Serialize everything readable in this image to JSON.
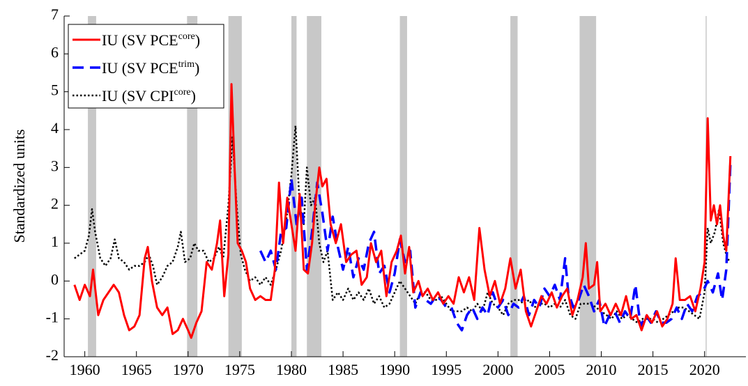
{
  "chart_data": {
    "type": "line",
    "y_label": "Standardized units",
    "xlim": [
      1958,
      2024
    ],
    "ylim": [
      -2,
      7
    ],
    "xticks": [
      1960,
      1965,
      1970,
      1975,
      1980,
      1985,
      1990,
      1995,
      2000,
      2005,
      2010,
      2015,
      2020
    ],
    "yticks": [
      -2,
      -1,
      0,
      1,
      2,
      3,
      4,
      5,
      6,
      7
    ],
    "legend": "upper left",
    "recession_color": "#c8c8c8",
    "recessions": [
      [
        1960.3,
        1961.1
      ],
      [
        1969.9,
        1970.9
      ],
      [
        1973.9,
        1975.2
      ],
      [
        1980.0,
        1980.5
      ],
      [
        1981.5,
        1982.9
      ],
      [
        1990.5,
        1991.2
      ],
      [
        2001.2,
        2001.9
      ],
      [
        2007.9,
        2009.5
      ],
      [
        2020.1,
        2020.2
      ]
    ],
    "series": [
      {
        "name": "IU (SV PCE",
        "name_superscript": "core",
        "name_suffix": ")",
        "color": "#ff0000",
        "style": "solid",
        "x": [
          1959.0,
          1959.5,
          1960.0,
          1960.5,
          1960.8,
          1961.3,
          1961.8,
          1962.3,
          1962.8,
          1963.3,
          1963.8,
          1964.3,
          1964.8,
          1965.3,
          1965.8,
          1966.1,
          1966.5,
          1967.0,
          1967.5,
          1968.0,
          1968.5,
          1969.0,
          1969.5,
          1970.0,
          1970.3,
          1970.8,
          1971.3,
          1971.8,
          1972.3,
          1972.8,
          1973.1,
          1973.5,
          1973.9,
          1974.2,
          1974.5,
          1974.8,
          1975.2,
          1975.6,
          1976.0,
          1976.5,
          1977.0,
          1977.5,
          1978.0,
          1978.4,
          1978.8,
          1979.2,
          1979.6,
          1980.0,
          1980.4,
          1980.8,
          1981.2,
          1981.6,
          1982.0,
          1982.3,
          1982.7,
          1983.0,
          1983.4,
          1983.8,
          1984.3,
          1984.8,
          1985.3,
          1985.8,
          1986.3,
          1986.8,
          1987.3,
          1987.7,
          1988.2,
          1988.7,
          1989.2,
          1989.7,
          1990.2,
          1990.6,
          1991.0,
          1991.4,
          1991.8,
          1992.3,
          1992.7,
          1993.2,
          1993.7,
          1994.2,
          1994.7,
          1995.2,
          1995.7,
          1996.2,
          1996.7,
          1997.2,
          1997.7,
          1998.2,
          1998.7,
          1999.2,
          1999.7,
          2000.2,
          2000.7,
          2001.2,
          2001.7,
          2002.2,
          2002.7,
          2003.2,
          2003.7,
          2004.2,
          2004.7,
          2005.2,
          2005.7,
          2006.2,
          2006.7,
          2007.2,
          2007.7,
          2008.2,
          2008.5,
          2008.8,
          2009.3,
          2009.6,
          2009.9,
          2010.4,
          2010.9,
          2011.4,
          2011.9,
          2012.4,
          2012.9,
          2013.4,
          2013.9,
          2014.4,
          2014.9,
          2015.4,
          2015.9,
          2016.4,
          2016.9,
          2017.2,
          2017.6,
          2018.1,
          2018.6,
          2019.1,
          2019.6,
          2020.0,
          2020.3,
          2020.6,
          2020.9,
          2021.2,
          2021.5,
          2021.8,
          2022.1,
          2022.5
        ],
        "values": [
          -0.1,
          -0.5,
          -0.1,
          -0.4,
          0.3,
          -0.9,
          -0.5,
          -0.3,
          -0.1,
          -0.3,
          -0.9,
          -1.3,
          -1.2,
          -0.9,
          0.6,
          0.9,
          0.0,
          -0.7,
          -0.9,
          -0.7,
          -1.4,
          -1.3,
          -1.0,
          -1.3,
          -1.5,
          -1.1,
          -0.8,
          0.5,
          0.3,
          1.0,
          1.6,
          -0.4,
          0.7,
          5.2,
          3.0,
          1.0,
          0.8,
          0.5,
          -0.2,
          -0.5,
          -0.4,
          -0.5,
          -0.5,
          0.3,
          2.6,
          1.0,
          2.2,
          1.5,
          0.8,
          2.3,
          0.3,
          0.2,
          1.0,
          2.0,
          3.0,
          2.5,
          2.7,
          1.5,
          1.0,
          1.5,
          0.5,
          0.7,
          0.8,
          -0.1,
          0.1,
          1.0,
          0.5,
          0.8,
          -0.4,
          0.5,
          0.8,
          1.2,
          0.2,
          0.9,
          -0.3,
          0.0,
          -0.4,
          -0.2,
          -0.5,
          -0.3,
          -0.6,
          -0.4,
          -0.6,
          0.1,
          -0.3,
          0.1,
          -0.5,
          1.4,
          0.3,
          -0.4,
          0.0,
          -0.6,
          -0.2,
          0.6,
          -0.2,
          0.3,
          -0.8,
          -1.2,
          -0.8,
          -0.4,
          -0.6,
          -0.3,
          -0.7,
          -0.4,
          -0.2,
          -0.9,
          -0.5,
          0.1,
          1.0,
          -0.2,
          -0.1,
          0.5,
          -0.8,
          -0.6,
          -0.9,
          -0.6,
          -0.9,
          -0.4,
          -1.0,
          -0.9,
          -1.3,
          -0.9,
          -1.1,
          -0.8,
          -1.2,
          -1.0,
          -0.6,
          0.6,
          -0.5,
          -0.5,
          -0.4,
          -0.8,
          -0.2,
          0.5,
          4.3,
          1.6,
          2.0,
          1.5,
          2.0,
          1.2,
          0.8,
          3.3
        ]
      },
      {
        "name": "IU (SV PCE",
        "name_superscript": "trim",
        "name_suffix": ")",
        "color": "#0000ff",
        "style": "dashed",
        "x": [
          1977.0,
          1977.5,
          1978.0,
          1978.5,
          1979.0,
          1979.5,
          1980.0,
          1980.5,
          1981.0,
          1981.5,
          1982.0,
          1982.5,
          1983.0,
          1983.5,
          1984.0,
          1984.5,
          1985.0,
          1985.5,
          1986.0,
          1986.5,
          1987.0,
          1987.5,
          1988.0,
          1988.5,
          1989.0,
          1989.5,
          1990.0,
          1990.5,
          1991.0,
          1991.5,
          1992.0,
          1992.5,
          1993.0,
          1993.5,
          1994.0,
          1994.5,
          1995.0,
          1995.5,
          1996.0,
          1996.5,
          1997.0,
          1997.5,
          1998.0,
          1998.5,
          1999.0,
          1999.5,
          2000.0,
          2000.5,
          2001.0,
          2001.5,
          2002.0,
          2002.5,
          2003.0,
          2003.5,
          2004.0,
          2004.5,
          2005.0,
          2005.5,
          2006.0,
          2006.5,
          2006.8,
          2007.3,
          2007.8,
          2008.3,
          2008.8,
          2009.3,
          2009.8,
          2010.3,
          2010.8,
          2011.3,
          2011.8,
          2012.3,
          2012.8,
          2013.3,
          2013.8,
          2014.3,
          2014.8,
          2015.3,
          2015.8,
          2016.3,
          2016.8,
          2017.3,
          2017.8,
          2018.3,
          2018.8,
          2019.3,
          2019.8,
          2020.3,
          2020.8,
          2021.3,
          2021.7,
          2022.1,
          2022.5
        ],
        "values": [
          0.8,
          0.5,
          0.8,
          0.3,
          1.3,
          1.4,
          2.7,
          1.5,
          2.2,
          0.3,
          1.3,
          2.6,
          1.8,
          0.8,
          1.7,
          0.9,
          0.3,
          0.9,
          0.1,
          0.6,
          0.3,
          1.0,
          1.3,
          0.2,
          0.4,
          -0.3,
          0.2,
          1.1,
          0.5,
          0.8,
          -0.7,
          -0.3,
          -0.5,
          -0.6,
          -0.4,
          -0.5,
          -0.7,
          -0.7,
          -1.1,
          -1.3,
          -0.9,
          -0.7,
          -1.0,
          -0.7,
          -0.9,
          -0.3,
          -0.7,
          -0.5,
          -0.9,
          -0.6,
          -0.7,
          -0.4,
          -0.9,
          -0.5,
          -0.7,
          -0.2,
          -0.4,
          -0.1,
          -0.5,
          0.6,
          -0.3,
          -0.7,
          -0.5,
          -0.1,
          -0.4,
          -0.8,
          -0.5,
          -1.2,
          -0.9,
          -0.8,
          -1.1,
          -0.8,
          -1.0,
          -0.1,
          -1.2,
          -0.9,
          -1.1,
          -0.8,
          -1.1,
          -1.1,
          -1.0,
          -0.7,
          -1.0,
          -0.6,
          -0.8,
          -0.4,
          -0.3,
          0.0,
          -0.3,
          0.2,
          -0.5,
          0.3,
          3.1
        ]
      },
      {
        "name": "IU (SV CPI",
        "name_superscript": "core",
        "name_suffix": ")",
        "color": "#000000",
        "style": "dotted",
        "x": [
          1959.0,
          1959.5,
          1960.0,
          1960.4,
          1960.7,
          1961.0,
          1961.5,
          1962.0,
          1962.5,
          1962.9,
          1963.3,
          1963.8,
          1964.3,
          1964.8,
          1965.3,
          1965.8,
          1966.2,
          1966.6,
          1967.0,
          1967.5,
          1968.0,
          1968.5,
          1969.0,
          1969.3,
          1969.7,
          1970.2,
          1970.6,
          1971.0,
          1971.5,
          1972.0,
          1972.5,
          1973.0,
          1973.4,
          1973.9,
          1974.3,
          1974.7,
          1975.1,
          1975.5,
          1976.0,
          1976.5,
          1977.0,
          1977.5,
          1978.0,
          1978.5,
          1979.0,
          1979.5,
          1980.0,
          1980.4,
          1980.8,
          1981.2,
          1981.5,
          1981.9,
          1982.3,
          1982.7,
          1983.1,
          1983.5,
          1984.0,
          1984.5,
          1985.0,
          1985.5,
          1986.0,
          1986.5,
          1987.0,
          1987.5,
          1988.0,
          1988.5,
          1989.0,
          1989.5,
          1990.0,
          1990.5,
          1991.0,
          1991.5,
          1992.0,
          1992.5,
          1993.0,
          1993.5,
          1994.0,
          1994.5,
          1995.0,
          1995.5,
          1996.0,
          1996.5,
          1997.0,
          1997.5,
          1998.0,
          1998.5,
          1999.0,
          1999.5,
          2000.0,
          2000.5,
          2001.0,
          2001.5,
          2002.0,
          2002.5,
          2003.0,
          2003.5,
          2004.0,
          2004.5,
          2005.0,
          2005.5,
          2006.0,
          2006.5,
          2007.0,
          2007.5,
          2008.0,
          2008.5,
          2009.0,
          2009.5,
          2010.0,
          2010.5,
          2011.0,
          2011.5,
          2012.0,
          2012.5,
          2013.0,
          2013.5,
          2014.0,
          2014.5,
          2015.0,
          2015.5,
          2016.0,
          2016.5,
          2017.0,
          2017.5,
          2018.0,
          2018.5,
          2019.0,
          2019.5,
          2020.0,
          2020.3,
          2020.6,
          2021.0,
          2021.4,
          2021.8,
          2022.2,
          2022.5
        ],
        "values": [
          0.6,
          0.7,
          0.8,
          1.2,
          1.9,
          1.3,
          0.6,
          0.4,
          0.6,
          1.1,
          0.6,
          0.5,
          0.3,
          0.4,
          0.4,
          0.5,
          0.7,
          0.4,
          -0.1,
          0.1,
          0.4,
          0.5,
          0.9,
          1.3,
          0.5,
          0.6,
          1.0,
          0.8,
          0.8,
          0.5,
          0.6,
          0.9,
          0.6,
          2.0,
          3.8,
          2.0,
          0.7,
          0.3,
          0.0,
          0.1,
          -0.1,
          0.1,
          -0.1,
          0.3,
          0.8,
          1.6,
          2.8,
          4.1,
          2.0,
          1.5,
          3.0,
          2.0,
          2.2,
          1.0,
          0.5,
          0.8,
          -0.5,
          -0.3,
          -0.5,
          -0.2,
          -0.5,
          -0.3,
          -0.5,
          -0.2,
          -0.6,
          -0.4,
          -0.7,
          -0.6,
          -0.3,
          0.0,
          -0.2,
          -0.4,
          -0.6,
          -0.3,
          -0.3,
          -0.5,
          -0.5,
          -0.4,
          -0.6,
          -0.8,
          -0.8,
          -0.8,
          -0.7,
          -0.8,
          -0.6,
          -0.8,
          -0.3,
          -0.6,
          -0.7,
          -0.9,
          -0.6,
          -0.5,
          -0.5,
          -0.6,
          -0.5,
          -0.7,
          -0.6,
          -0.6,
          -0.7,
          -0.6,
          -0.7,
          -0.5,
          -0.9,
          -1.0,
          -0.6,
          -0.6,
          -0.6,
          -0.7,
          -0.8,
          -0.9,
          -1.0,
          -0.8,
          -1.0,
          -0.9,
          -1.0,
          -1.1,
          -1.0,
          -1.0,
          -1.0,
          -1.1,
          -1.0,
          -0.9,
          -0.8,
          -0.7,
          -0.7,
          -0.8,
          -0.9,
          -1.0,
          -0.3,
          1.4,
          1.0,
          1.3,
          1.9,
          1.0,
          0.6,
          0.5
        ]
      }
    ]
  }
}
